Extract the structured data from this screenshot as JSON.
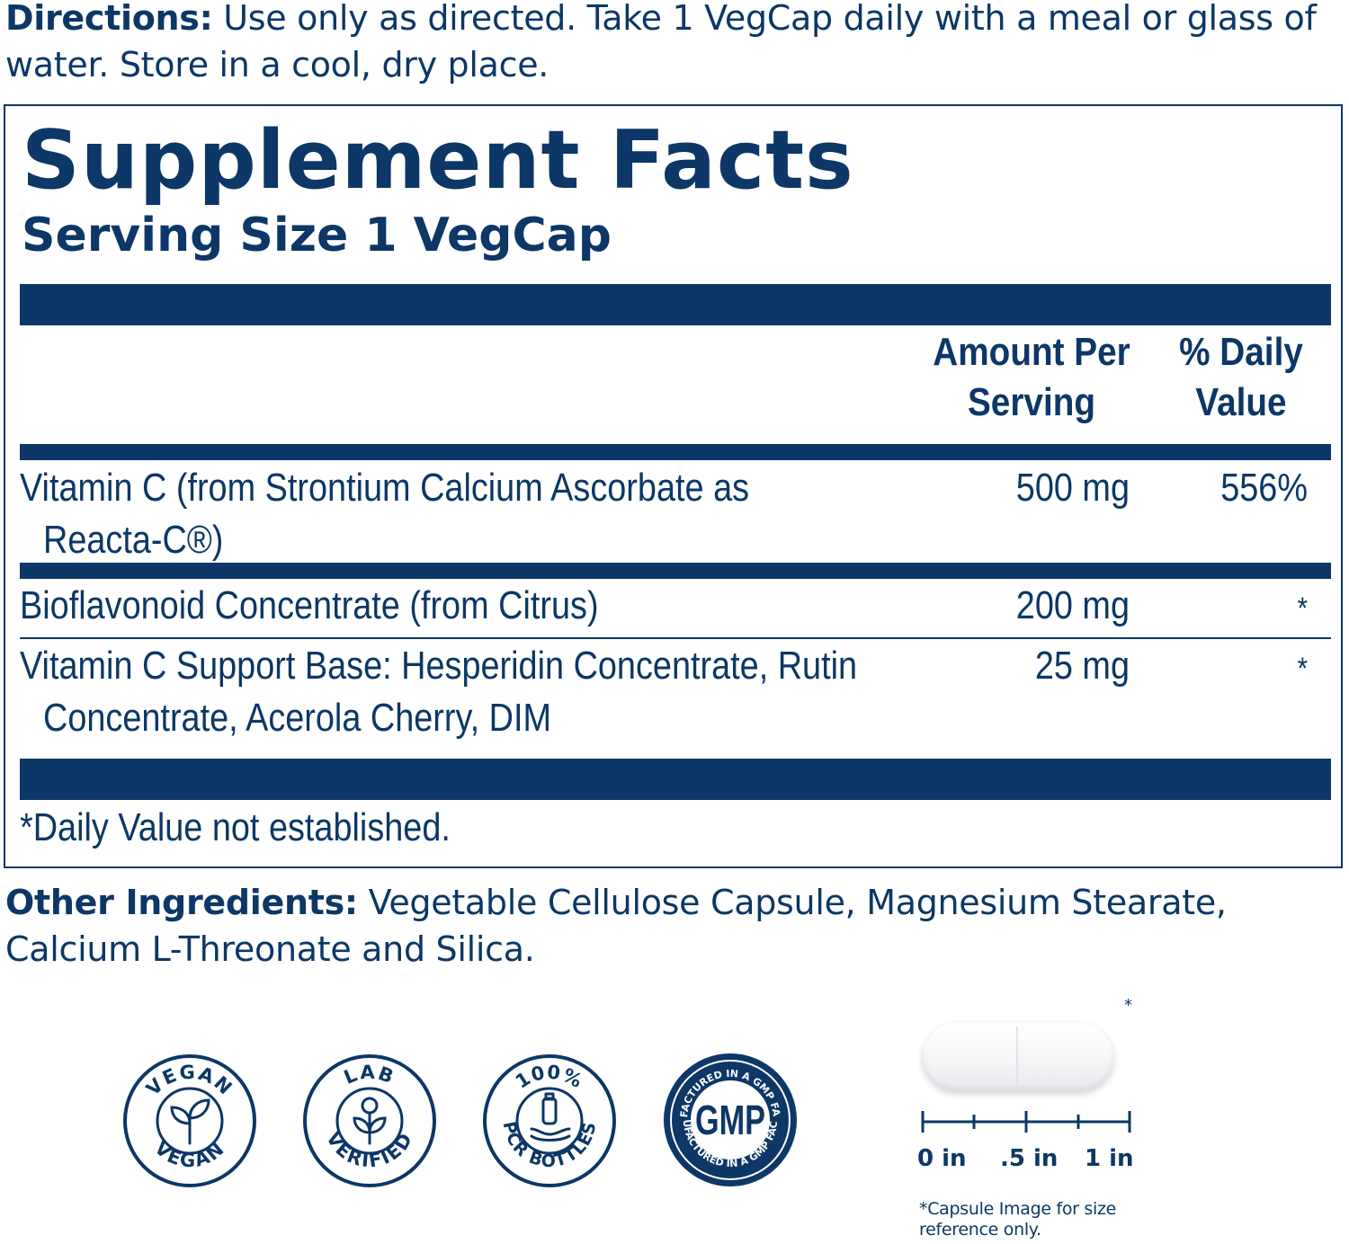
{
  "directions": {
    "label": "Directions:",
    "text": " Use only as directed. Take 1 VegCap daily with a meal or glass of water. Store in a cool, dry place."
  },
  "facts": {
    "title": "Supplement Facts",
    "serving_size": "Serving Size 1 VegCap",
    "header_amount": "Amount Per Serving",
    "header_dv": "% Daily Value",
    "rows": [
      {
        "name_line1": "Vitamin C (from Strontium Calcium Ascorbate as",
        "name_line2": "Reacta-C®)",
        "amount": "500 mg",
        "dv": "556%"
      },
      {
        "name_line1": "Bioflavonoid Concentrate (from Citrus)",
        "amount": "200 mg",
        "dv": "*"
      },
      {
        "name_line1": "Vitamin C Support Base: Hesperidin Concentrate, Rutin",
        "name_line2": "Concentrate, Acerola Cherry, DIM",
        "amount": "25 mg",
        "dv": "*"
      }
    ],
    "footnote": "*Daily Value not established."
  },
  "other_ingredients": {
    "label": "Other Ingredients:",
    "text": " Vegetable Cellulose Capsule, Magnesium Stearate, Calcium L-Threonate and Silica."
  },
  "badges": {
    "vegan_top": "VEGAN",
    "vegan_bottom": "VEGAN",
    "lab_top": "LAB",
    "lab_bottom": "VERIFIED",
    "pcr_top": "100%",
    "pcr_bottom": "PCR BOTTLES",
    "gmp_center": "GMP",
    "gmp_ring": "MANUFACTURED IN A GMP FACILITY"
  },
  "capsule": {
    "asterisk": "*",
    "ruler_labels": [
      "0 in",
      ".5 in",
      "1 in"
    ],
    "note": "*Capsule Image for size reference only."
  },
  "colors": {
    "brand_navy": "#0c3766"
  }
}
